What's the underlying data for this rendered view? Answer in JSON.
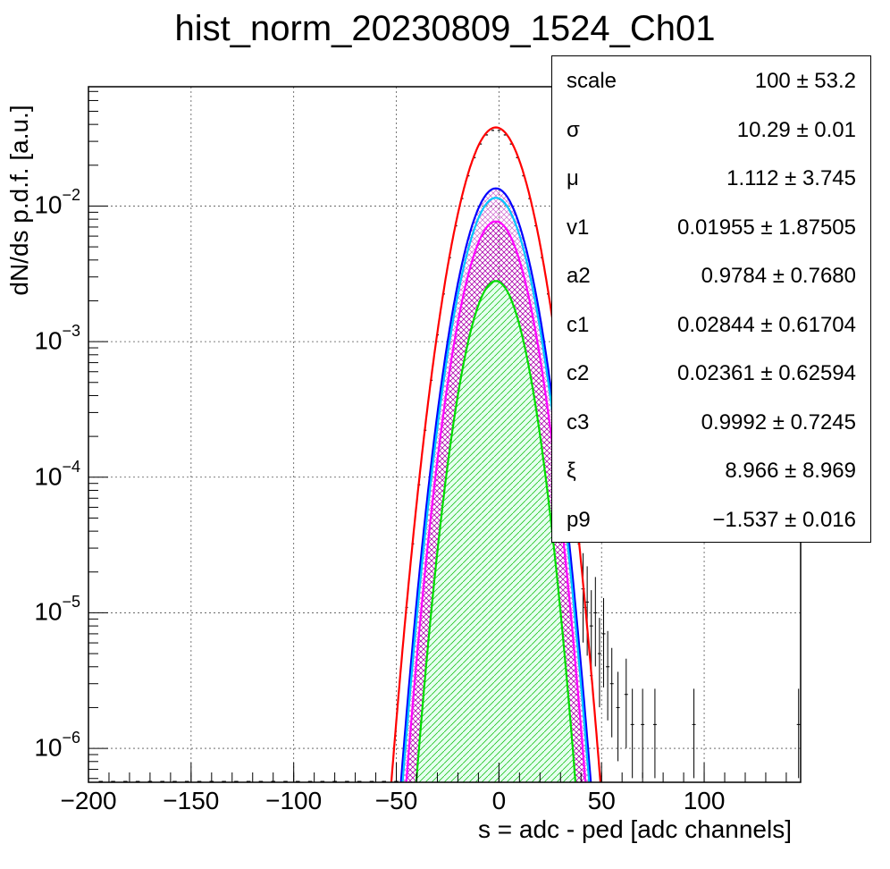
{
  "chart_data": {
    "type": "line",
    "title": "hist_norm_20230809_1524_Ch01",
    "xlabel": "s = adc - ped [adc channels]",
    "ylabel": "dN/ds p.d.f. [a.u.]",
    "xlim": [
      -200,
      147
    ],
    "ylim_log10": [
      -6.25,
      -1.12
    ],
    "yscale": "log",
    "grid": true,
    "x_ticks": [
      {
        "value": -200,
        "label": "−200"
      },
      {
        "value": -150,
        "label": "−150"
      },
      {
        "value": -100,
        "label": "−100"
      },
      {
        "value": -50,
        "label": "−50"
      },
      {
        "value": 0,
        "label": "0"
      },
      {
        "value": 50,
        "label": "50"
      },
      {
        "value": 100,
        "label": "100"
      }
    ],
    "y_ticks": [
      {
        "exp": -2,
        "base": "10",
        "sup": "−2"
      },
      {
        "exp": -3,
        "base": "10",
        "sup": "−3"
      },
      {
        "exp": -4,
        "base": "10",
        "sup": "−4"
      },
      {
        "exp": -5,
        "base": "10",
        "sup": "−5"
      },
      {
        "exp": -6,
        "base": "10",
        "sup": "−6"
      }
    ],
    "series": [
      {
        "color": "#ff0000",
        "peak": 0.038,
        "mu": -1.5,
        "sigma": 10.8
      },
      {
        "color": "#0000ff",
        "peak": 0.0135,
        "mu": -1.5,
        "sigma": 10.3
      },
      {
        "color": "#00c8ff",
        "peak": 0.0115,
        "mu": -1.5,
        "sigma": 10.2
      },
      {
        "color": "#ff00ff",
        "peak": 0.0077,
        "mu": -1.5,
        "sigma": 10.0
      },
      {
        "color": "#00dd00",
        "peak": 0.0028,
        "mu": -1.5,
        "sigma": 9.4
      }
    ],
    "noise_points": [
      {
        "x": 41,
        "y": 1.5e-05
      },
      {
        "x": 43,
        "y": 1.2e-05
      },
      {
        "x": 45,
        "y": 8e-06
      },
      {
        "x": 47,
        "y": 1e-05
      },
      {
        "x": 49,
        "y": 5e-06
      },
      {
        "x": 51,
        "y": 7e-06
      },
      {
        "x": 53,
        "y": 4e-06
      },
      {
        "x": 55,
        "y": 3e-06
      },
      {
        "x": 58,
        "y": 2e-06
      },
      {
        "x": 62,
        "y": 2.5e-06
      },
      {
        "x": 65,
        "y": 1.5e-06
      },
      {
        "x": 70,
        "y": 1.5e-06
      },
      {
        "x": 76,
        "y": 1.5e-06
      },
      {
        "x": 95,
        "y": 1.5e-06
      },
      {
        "x": 146,
        "y": 1.5e-06
      }
    ]
  },
  "stats": [
    {
      "name": "scale",
      "value": "100 ± 53.2"
    },
    {
      "name": "σ",
      "value": "10.29 ± 0.01"
    },
    {
      "name": "μ",
      "value": "1.112 ± 3.745"
    },
    {
      "name": "v1",
      "value": "0.01955 ± 1.87505"
    },
    {
      "name": "a2",
      "value": "0.9784 ± 0.7680"
    },
    {
      "name": "c1",
      "value": "0.02844 ± 0.61704"
    },
    {
      "name": "c2",
      "value": "0.02361 ± 0.62594"
    },
    {
      "name": "c3",
      "value": "0.9992 ± 0.7245"
    },
    {
      "name": "ξ",
      "value": "8.966 ± 8.969"
    },
    {
      "name": "p9",
      "value": "−1.537 ± 0.016"
    }
  ]
}
